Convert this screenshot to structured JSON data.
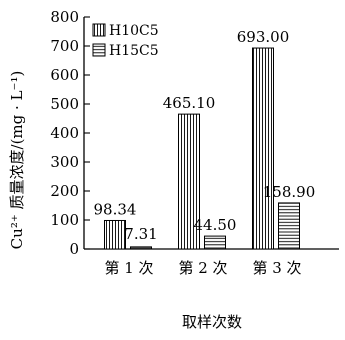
{
  "chart_data": {
    "type": "bar",
    "categories": [
      "第 1 次",
      "第 2 次",
      "第 3 次"
    ],
    "series": [
      {
        "name": "H10C5",
        "values": [
          98.34,
          465.1,
          693.0
        ],
        "labels": [
          "98.34",
          "465.10",
          "693.00"
        ],
        "pattern": "vertical-stripes"
      },
      {
        "name": "H15C5",
        "values": [
          7.31,
          44.5,
          158.9
        ],
        "labels": [
          "7.31",
          "44.50",
          "158.90"
        ],
        "pattern": "horizontal-stripes"
      }
    ],
    "xlabel": "取样次数",
    "ylabel": "Cu²⁺ 质量浓度/(mg · L⁻¹)",
    "ylim": [
      0,
      800
    ],
    "yticks": [
      0,
      100,
      200,
      300,
      400,
      500,
      600,
      700,
      800
    ],
    "ytick_labels": [
      "0",
      "100",
      "200",
      "300",
      "400",
      "500",
      "600",
      "700",
      "800"
    ],
    "legend_position": "top-left",
    "grid": false,
    "colors": {
      "ink": "#000000",
      "background": "#ffffff"
    }
  }
}
